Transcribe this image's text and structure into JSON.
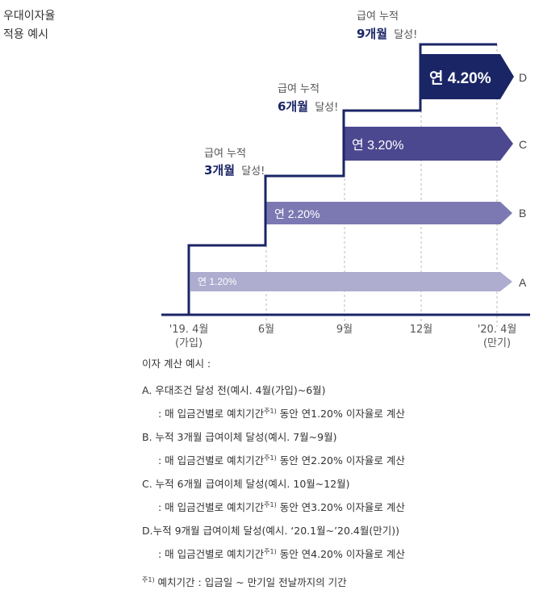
{
  "title": {
    "line1": "우대이자율",
    "line2": "적용 예시"
  },
  "stages": [
    {
      "id": "A",
      "rate": "연 1.20%",
      "color": "#aeaccf",
      "text_color": "#ffffff"
    },
    {
      "id": "B",
      "rate": "연 2.20%",
      "color": "#7c79b2",
      "text_color": "#ffffff"
    },
    {
      "id": "C",
      "rate": "연 3.20%",
      "color": "#4c4890",
      "text_color": "#ffffff"
    },
    {
      "id": "D",
      "rate": "연 4.20%",
      "color": "#1a2566",
      "text_color": "#ffffff"
    }
  ],
  "milestones": [
    {
      "prefix": "급여 누적",
      "months": "3개월",
      "suffix": "달성!"
    },
    {
      "prefix": "급여 누적",
      "months": "6개월",
      "suffix": "달성!"
    },
    {
      "prefix": "급여 누적",
      "months": "9개월",
      "suffix": "달성!"
    }
  ],
  "timeline": [
    {
      "label": "'19. 4월",
      "sub": "(가입)"
    },
    {
      "label": "6월",
      "sub": ""
    },
    {
      "label": "9월",
      "sub": ""
    },
    {
      "label": "12월",
      "sub": ""
    },
    {
      "label": "'20. 4월",
      "sub": "(만기)"
    }
  ],
  "colors": {
    "axis": "#1a2566",
    "step_line": "#1a2566",
    "dash": "#bbbbbb",
    "accent_text": "#1a2566"
  },
  "notes": {
    "heading": "이자 계산 예시 :",
    "items": [
      {
        "title": "A. 우대조건 달성 전(예시. 4월(가입)~6월)",
        "detail_pre": ": 매 입금건별로 예치기간",
        "sup": "주1)",
        "detail_post": " 동안 연1.20% 이자율로 계산"
      },
      {
        "title": "B. 누적 3개월 급여이체 달성(예시. 7월~9월)",
        "detail_pre": ": 매 입금건별로 예치기간",
        "sup": "주1)",
        "detail_post": " 동안 연2.20% 이자율로 계산"
      },
      {
        "title": "C. 누적 6개월 급여이체 달성(예시. 10월~12월)",
        "detail_pre": ": 매 입금건별로 예치기간",
        "sup": "주1)",
        "detail_post": " 동안 연3.20% 이자율로 계산"
      },
      {
        "title": "D.누적 9개월 급여이체 달성(예시. ‘20.1월~’20.4월(만기))",
        "detail_pre": ": 매 입금건별로 예치기간",
        "sup": "주1)",
        "detail_post": " 동안 연4.20% 이자율로 계산"
      }
    ],
    "footnote_mark": "주1)",
    "footnote_text": " 예치기간 : 입금일 ~ 만기일 전날까지의 기간"
  }
}
